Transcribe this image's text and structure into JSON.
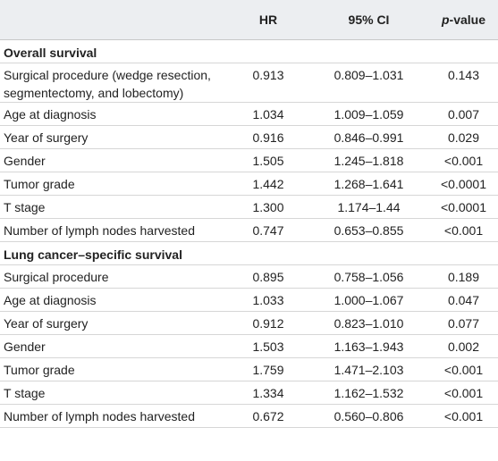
{
  "table": {
    "header": {
      "hr": "HR",
      "ci": "95% CI",
      "p_italic": "p",
      "p_rest": "-value"
    },
    "sections": [
      {
        "title": "Overall survival",
        "rows": [
          [
            "Surgical procedure (wedge resection, segmentectomy, and lobectomy)",
            "0.913",
            "0.809–1.031",
            "0.143"
          ],
          [
            "Age at diagnosis",
            "1.034",
            "1.009–1.059",
            "0.007"
          ],
          [
            "Year of surgery",
            "0.916",
            "0.846–0.991",
            "0.029"
          ],
          [
            "Gender",
            "1.505",
            "1.245–1.818",
            "<0.001"
          ],
          [
            "Tumor grade",
            "1.442",
            "1.268–1.641",
            "<0.0001"
          ],
          [
            "T stage",
            "1.300",
            "1.174–1.44",
            "<0.0001"
          ],
          [
            "Number of lymph nodes harvested",
            "0.747",
            "0.653–0.855",
            "<0.001"
          ]
        ]
      },
      {
        "title": "Lung cancer–specific survival",
        "rows": [
          [
            "Surgical procedure",
            "0.895",
            "0.758–1.056",
            "0.189"
          ],
          [
            "Age at diagnosis",
            "1.033",
            "1.000–1.067",
            "0.047"
          ],
          [
            "Year of surgery",
            "0.912",
            "0.823–1.010",
            "0.077"
          ],
          [
            "Gender",
            "1.503",
            "1.163–1.943",
            "0.002"
          ],
          [
            "Tumor grade",
            "1.759",
            "1.471–2.103",
            "<0.001"
          ],
          [
            "T stage",
            "1.334",
            "1.162–1.532",
            "<0.001"
          ],
          [
            "Number of lymph nodes harvested",
            "0.672",
            "0.560–0.806",
            "<0.001"
          ]
        ]
      }
    ]
  }
}
